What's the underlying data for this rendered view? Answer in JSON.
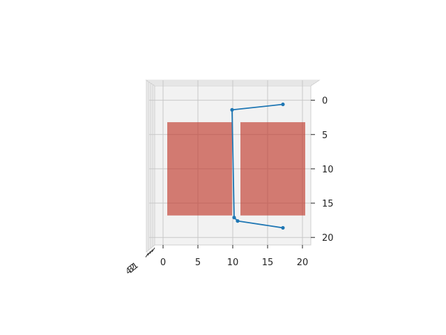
{
  "chart_data": {
    "type": "line",
    "title": "",
    "xlabel": "",
    "ylabel": "",
    "view": "3d projection viewed from top",
    "xlim": [
      -1.2,
      21.2
    ],
    "ylim": [
      -2.1,
      21.1
    ],
    "x_ticks": [
      0,
      5,
      10,
      15,
      20
    ],
    "y_ticks": [
      0,
      5,
      10,
      15,
      20
    ],
    "depth_ticks": [
      "1",
      "2",
      "3",
      "4"
    ],
    "grid": true,
    "legend": "none",
    "colors": {
      "line": "#1f77b4",
      "rect": "#c0392b",
      "pane": "#f2f2f2",
      "grid": "#c8c8c8"
    },
    "rectangles": [
      {
        "x0": 0.6,
        "x1": 9.9,
        "y0": 3.2,
        "y1": 16.8
      },
      {
        "x0": 11.1,
        "x1": 20.4,
        "y0": 3.2,
        "y1": 16.8
      }
    ],
    "series": [
      {
        "x": [
          17.2,
          9.9,
          10.2,
          10.7,
          17.2
        ],
        "y": [
          0.6,
          1.4,
          17.1,
          17.6,
          18.6
        ]
      }
    ]
  }
}
